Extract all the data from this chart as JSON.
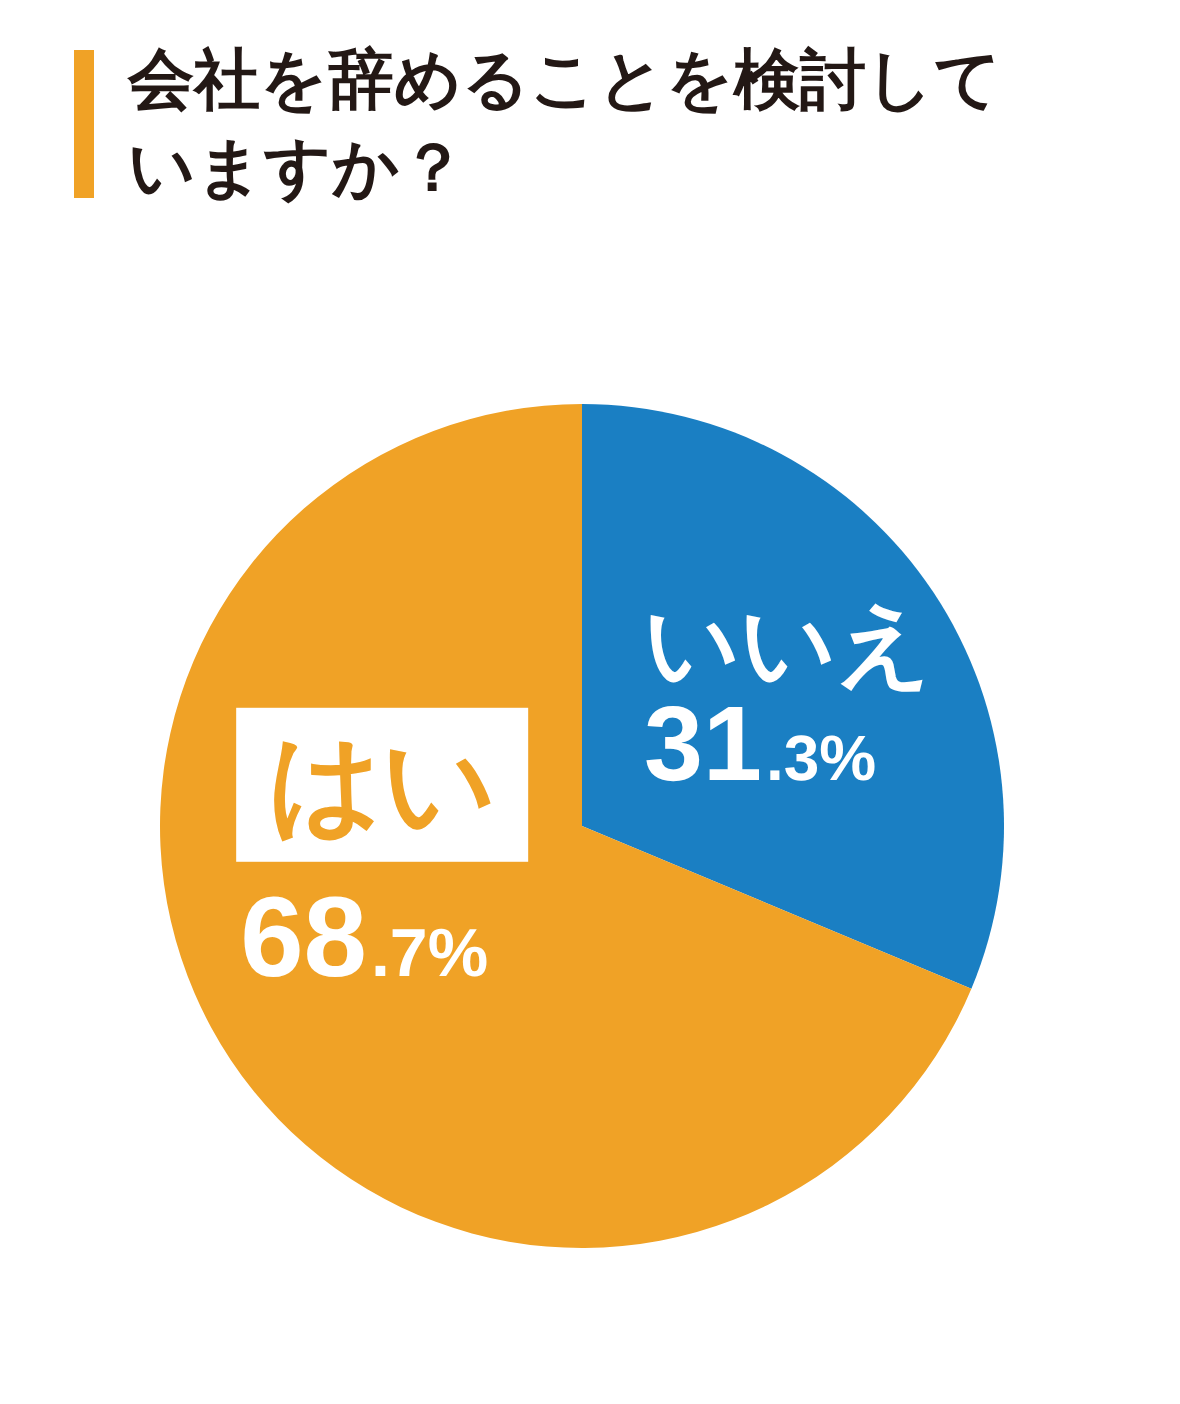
{
  "chart_data": {
    "type": "pie",
    "title": "会社を辞めることを検討していますか？",
    "categories": [
      "いいえ",
      "はい"
    ],
    "values": [
      31.3,
      68.7
    ],
    "colors": [
      "#1a7fc3",
      "#f0a226"
    ],
    "value_labels": [
      "31.3%",
      "68.7%"
    ]
  }
}
